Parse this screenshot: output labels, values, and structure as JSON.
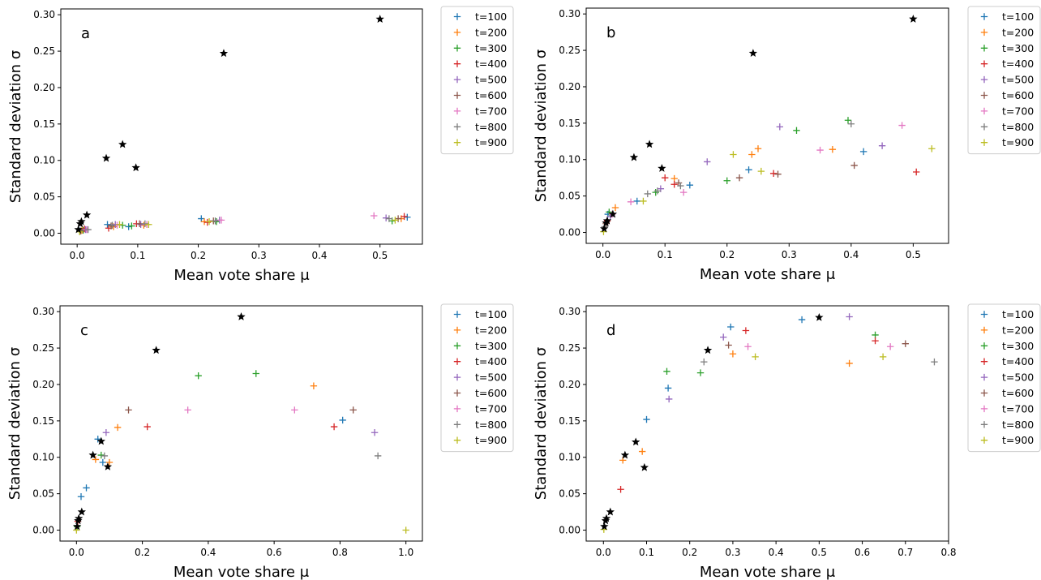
{
  "chart_data": [
    {
      "type": "scatter",
      "panel_label": "a",
      "xlabel": "Mean vote share μ",
      "ylabel": "Standard deviation σ",
      "xlim": [
        -0.027,
        0.57
      ],
      "ylim": [
        -0.015,
        0.308
      ],
      "xticks": [
        0,
        0.1,
        0.2,
        0.3,
        0.4,
        0.5
      ],
      "xtick_labels": [
        "0.0",
        "0.1",
        "0.2",
        "0.3",
        "0.4",
        "0.5"
      ],
      "yticks": [
        0,
        0.05,
        0.1,
        0.15,
        0.2,
        0.25,
        0.3
      ],
      "ytick_labels": [
        "0.00",
        "0.05",
        "0.10",
        "0.15",
        "0.20",
        "0.25",
        "0.30"
      ],
      "legend_position": "outside-right-top",
      "stars": {
        "x": [
          0.002,
          0.005,
          0.007,
          0.016,
          0.048,
          0.075,
          0.097,
          0.242,
          0.5
        ],
        "y": [
          0.005,
          0.013,
          0.016,
          0.025,
          0.103,
          0.122,
          0.09,
          0.247,
          0.294
        ]
      },
      "series": [
        {
          "name": "t=100",
          "color": "#1f77b4",
          "x": [
            0.005,
            0.05,
            0.085,
            0.205,
            0.545
          ],
          "y": [
            0.003,
            0.012,
            0.009,
            0.02,
            0.022
          ]
        },
        {
          "name": "t=200",
          "color": "#ff7f0e",
          "x": [
            0.008,
            0.06,
            0.11,
            0.21,
            0.535
          ],
          "y": [
            0.004,
            0.009,
            0.011,
            0.016,
            0.02
          ]
        },
        {
          "name": "t=300",
          "color": "#2ca02c",
          "x": [
            0.01,
            0.075,
            0.09,
            0.23,
            0.52
          ],
          "y": [
            0.004,
            0.011,
            0.01,
            0.016,
            0.017
          ]
        },
        {
          "name": "t=400",
          "color": "#d62728",
          "x": [
            0.012,
            0.052,
            0.098,
            0.215,
            0.54
          ],
          "y": [
            0.006,
            0.007,
            0.013,
            0.015,
            0.023
          ]
        },
        {
          "name": "t=500",
          "color": "#9467bd",
          "x": [
            0.014,
            0.063,
            0.105,
            0.235,
            0.51
          ],
          "y": [
            0.005,
            0.012,
            0.012,
            0.018,
            0.021
          ]
        },
        {
          "name": "t=600",
          "color": "#8c564b",
          "x": [
            0.006,
            0.056,
            0.103,
            0.225,
            0.53
          ],
          "y": [
            0.003,
            0.01,
            0.013,
            0.017,
            0.02
          ]
        },
        {
          "name": "t=700",
          "color": "#e377c2",
          "x": [
            0.016,
            0.066,
            0.115,
            0.238,
            0.49
          ],
          "y": [
            0.005,
            0.011,
            0.012,
            0.018,
            0.024
          ]
        },
        {
          "name": "t=800",
          "color": "#7f7f7f",
          "x": [
            0.018,
            0.058,
            0.112,
            0.228,
            0.515
          ],
          "y": [
            0.005,
            0.011,
            0.013,
            0.017,
            0.02
          ]
        },
        {
          "name": "t=900",
          "color": "#bcbd22",
          "x": [
            0.004,
            0.07,
            0.118,
            0.218,
            0.525
          ],
          "y": [
            0.002,
            0.012,
            0.012,
            0.016,
            0.018
          ]
        }
      ]
    },
    {
      "type": "scatter",
      "panel_label": "b",
      "xlabel": "Mean vote share μ",
      "ylabel": "Standard deviation σ",
      "xlim": [
        -0.027,
        0.557
      ],
      "ylim": [
        -0.015,
        0.308
      ],
      "xticks": [
        0,
        0.1,
        0.2,
        0.3,
        0.4,
        0.5
      ],
      "xtick_labels": [
        "0.0",
        "0.1",
        "0.2",
        "0.3",
        "0.4",
        "0.5"
      ],
      "yticks": [
        0,
        0.05,
        0.1,
        0.15,
        0.2,
        0.25,
        0.3
      ],
      "ytick_labels": [
        "0.00",
        "0.05",
        "0.10",
        "0.15",
        "0.20",
        "0.25",
        "0.30"
      ],
      "legend_position": "outside-right-top",
      "stars": {
        "x": [
          0.002,
          0.005,
          0.007,
          0.016,
          0.05,
          0.075,
          0.095,
          0.242,
          0.5
        ],
        "y": [
          0.005,
          0.013,
          0.016,
          0.025,
          0.103,
          0.121,
          0.088,
          0.246,
          0.293
        ]
      },
      "series": [
        {
          "name": "t=100",
          "color": "#1f77b4",
          "x": [
            0.008,
            0.055,
            0.14,
            0.235,
            0.42
          ],
          "y": [
            0.025,
            0.043,
            0.065,
            0.086,
            0.111
          ]
        },
        {
          "name": "t=200",
          "color": "#ff7f0e",
          "x": [
            0.02,
            0.115,
            0.24,
            0.25,
            0.37
          ],
          "y": [
            0.034,
            0.074,
            0.107,
            0.115,
            0.114
          ]
        },
        {
          "name": "t=300",
          "color": "#2ca02c",
          "x": [
            0.01,
            0.085,
            0.2,
            0.312,
            0.395
          ],
          "y": [
            0.028,
            0.055,
            0.071,
            0.14,
            0.154
          ]
        },
        {
          "name": "t=400",
          "color": "#d62728",
          "x": [
            0.007,
            0.1,
            0.115,
            0.275,
            0.505
          ],
          "y": [
            0.016,
            0.075,
            0.066,
            0.081,
            0.083
          ]
        },
        {
          "name": "t=500",
          "color": "#9467bd",
          "x": [
            0.012,
            0.093,
            0.168,
            0.285,
            0.45
          ],
          "y": [
            0.022,
            0.06,
            0.097,
            0.145,
            0.119
          ]
        },
        {
          "name": "t=600",
          "color": "#8c564b",
          "x": [
            0.005,
            0.122,
            0.22,
            0.282,
            0.405
          ],
          "y": [
            0.012,
            0.068,
            0.075,
            0.08,
            0.092
          ]
        },
        {
          "name": "t=700",
          "color": "#e377c2",
          "x": [
            0.015,
            0.045,
            0.13,
            0.35,
            0.482
          ],
          "y": [
            0.025,
            0.042,
            0.055,
            0.113,
            0.147
          ]
        },
        {
          "name": "t=800",
          "color": "#7f7f7f",
          "x": [
            0.003,
            0.072,
            0.088,
            0.125,
            0.4
          ],
          "y": [
            0.008,
            0.053,
            0.057,
            0.064,
            0.149
          ]
        },
        {
          "name": "t=900",
          "color": "#bcbd22",
          "x": [
            0.001,
            0.065,
            0.21,
            0.255,
            0.53
          ],
          "y": [
            0.001,
            0.043,
            0.107,
            0.084,
            0.115
          ]
        }
      ]
    },
    {
      "type": "scatter",
      "panel_label": "c",
      "xlabel": "Mean vote share μ",
      "ylabel": "Standard deviation σ",
      "xlim": [
        -0.05,
        1.05
      ],
      "ylim": [
        -0.015,
        0.308
      ],
      "xticks": [
        0,
        0.2,
        0.4,
        0.6,
        0.8,
        1.0
      ],
      "xtick_labels": [
        "0.0",
        "0.2",
        "0.4",
        "0.6",
        "0.8",
        "1.0"
      ],
      "yticks": [
        0,
        0.05,
        0.1,
        0.15,
        0.2,
        0.25,
        0.3
      ],
      "ytick_labels": [
        "0.00",
        "0.05",
        "0.10",
        "0.15",
        "0.20",
        "0.25",
        "0.30"
      ],
      "legend_position": "outside-right-top",
      "stars": {
        "x": [
          0.002,
          0.005,
          0.007,
          0.016,
          0.05,
          0.075,
          0.095,
          0.242,
          0.5
        ],
        "y": [
          0.005,
          0.013,
          0.016,
          0.025,
          0.103,
          0.122,
          0.087,
          0.247,
          0.293
        ]
      },
      "series": [
        {
          "name": "t=100",
          "color": "#1f77b4",
          "x": [
            0.014,
            0.03,
            0.065,
            0.08,
            0.808
          ],
          "y": [
            0.046,
            0.058,
            0.125,
            0.093,
            0.151
          ]
        },
        {
          "name": "t=200",
          "color": "#ff7f0e",
          "x": [
            0.058,
            0.1,
            0.125,
            0.72
          ],
          "y": [
            0.097,
            0.093,
            0.141,
            0.198
          ]
        },
        {
          "name": "t=300",
          "color": "#2ca02c",
          "x": [
            0.002,
            0.075,
            0.37,
            0.545
          ],
          "y": [
            0.005,
            0.103,
            0.212,
            0.215
          ]
        },
        {
          "name": "t=400",
          "color": "#d62728",
          "x": [
            0.004,
            0.215,
            0.782
          ],
          "y": [
            0.012,
            0.142,
            0.142
          ]
        },
        {
          "name": "t=500",
          "color": "#9467bd",
          "x": [
            0.09,
            0.905
          ],
          "y": [
            0.134,
            0.134
          ]
        },
        {
          "name": "t=600",
          "color": "#8c564b",
          "x": [
            0.158,
            0.84
          ],
          "y": [
            0.165,
            0.165
          ]
        },
        {
          "name": "t=700",
          "color": "#e377c2",
          "x": [
            0.338,
            0.662
          ],
          "y": [
            0.165,
            0.165
          ]
        },
        {
          "name": "t=800",
          "color": "#7f7f7f",
          "x": [
            0.085,
            0.915
          ],
          "y": [
            0.102,
            0.102
          ]
        },
        {
          "name": "t=900",
          "color": "#bcbd22",
          "x": [
            0.0,
            1.0
          ],
          "y": [
            0.0,
            0.0
          ]
        }
      ]
    },
    {
      "type": "scatter",
      "panel_label": "d",
      "xlabel": "Mean vote share μ",
      "ylabel": "Standard deviation σ",
      "xlim": [
        -0.04,
        0.8
      ],
      "ylim": [
        -0.015,
        0.308
      ],
      "xticks": [
        0,
        0.1,
        0.2,
        0.3,
        0.4,
        0.5,
        0.6,
        0.7,
        0.8
      ],
      "xtick_labels": [
        "0.0",
        "0.1",
        "0.2",
        "0.3",
        "0.4",
        "0.5",
        "0.6",
        "0.7",
        "0.8"
      ],
      "yticks": [
        0,
        0.05,
        0.1,
        0.15,
        0.2,
        0.25,
        0.3
      ],
      "ytick_labels": [
        "0.00",
        "0.05",
        "0.10",
        "0.15",
        "0.20",
        "0.25",
        "0.30"
      ],
      "legend_position": "outside-right-top",
      "stars": {
        "x": [
          0.002,
          0.005,
          0.007,
          0.016,
          0.05,
          0.075,
          0.095,
          0.242,
          0.5
        ],
        "y": [
          0.005,
          0.013,
          0.016,
          0.025,
          0.103,
          0.121,
          0.086,
          0.247,
          0.292
        ]
      },
      "series": [
        {
          "name": "t=100",
          "color": "#1f77b4",
          "x": [
            0.1,
            0.15,
            0.295,
            0.46
          ],
          "y": [
            0.152,
            0.195,
            0.279,
            0.289
          ]
        },
        {
          "name": "t=200",
          "color": "#ff7f0e",
          "x": [
            0.045,
            0.09,
            0.3,
            0.57
          ],
          "y": [
            0.096,
            0.108,
            0.242,
            0.229
          ]
        },
        {
          "name": "t=300",
          "color": "#2ca02c",
          "x": [
            0.147,
            0.225,
            0.63
          ],
          "y": [
            0.218,
            0.216,
            0.268
          ]
        },
        {
          "name": "t=400",
          "color": "#d62728",
          "x": [
            0.04,
            0.33,
            0.63
          ],
          "y": [
            0.056,
            0.274,
            0.26
          ]
        },
        {
          "name": "t=500",
          "color": "#9467bd",
          "x": [
            0.152,
            0.278,
            0.57
          ],
          "y": [
            0.18,
            0.265,
            0.293
          ]
        },
        {
          "name": "t=600",
          "color": "#8c564b",
          "x": [
            0.29,
            0.7
          ],
          "y": [
            0.254,
            0.256
          ]
        },
        {
          "name": "t=700",
          "color": "#e377c2",
          "x": [
            0.335,
            0.665
          ],
          "y": [
            0.252,
            0.252
          ]
        },
        {
          "name": "t=800",
          "color": "#7f7f7f",
          "x": [
            0.233,
            0.767
          ],
          "y": [
            0.231,
            0.231
          ]
        },
        {
          "name": "t=900",
          "color": "#bcbd22",
          "x": [
            0.001,
            0.352,
            0.648
          ],
          "y": [
            0.001,
            0.238,
            0.238
          ]
        }
      ]
    }
  ]
}
